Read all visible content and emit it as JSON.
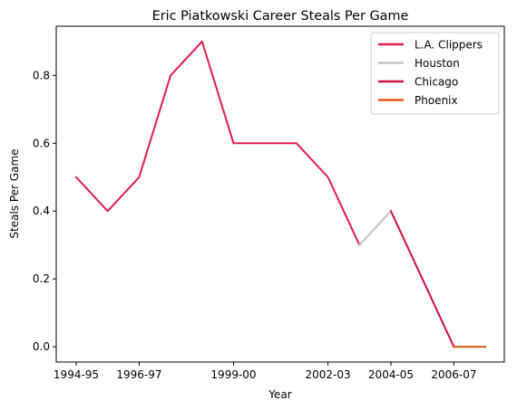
{
  "chart_data": {
    "type": "line",
    "title": "Eric Piatkowski Career Steals Per Game",
    "xlabel": "Year",
    "ylabel": "Steals Per Game",
    "x_tick_labels": [
      "1994-95",
      "1996-97",
      "1999-00",
      "2002-03",
      "2004-05",
      "2006-07"
    ],
    "y_ticks": [
      0.0,
      0.2,
      0.4,
      0.6,
      0.8
    ],
    "y_tick_labels": [
      "0.0",
      "0.2",
      "0.4",
      "0.6",
      "0.8"
    ],
    "ylim": [
      -0.045,
      0.945
    ],
    "grid": false,
    "legend_position": "top-right",
    "series": [
      {
        "name": "L.A. Clippers",
        "color": "#e31b4f",
        "x": [
          "1994-95",
          "1995-96",
          "1996-97",
          "1997-98",
          "1998-99",
          "1999-00",
          "2000-01",
          "2001-02",
          "2002-03",
          "2003-04"
        ],
        "values": [
          0.5,
          0.4,
          0.5,
          0.8,
          0.9,
          0.6,
          0.6,
          0.6,
          0.5,
          0.3
        ]
      },
      {
        "name": "Houston",
        "color": "#c0c0c0",
        "x": [
          "2003-04",
          "2004-05"
        ],
        "values": [
          0.3,
          0.4
        ]
      },
      {
        "name": "Chicago",
        "color": "#cc1144",
        "x": [
          "2004-05",
          "2005-06",
          "2006-07"
        ],
        "values": [
          0.4,
          0.2,
          0.0
        ]
      },
      {
        "name": "Phoenix",
        "color": "#e0561b",
        "x": [
          "2006-07",
          "2007-08"
        ],
        "values": [
          0.0,
          0.0
        ]
      }
    ]
  }
}
